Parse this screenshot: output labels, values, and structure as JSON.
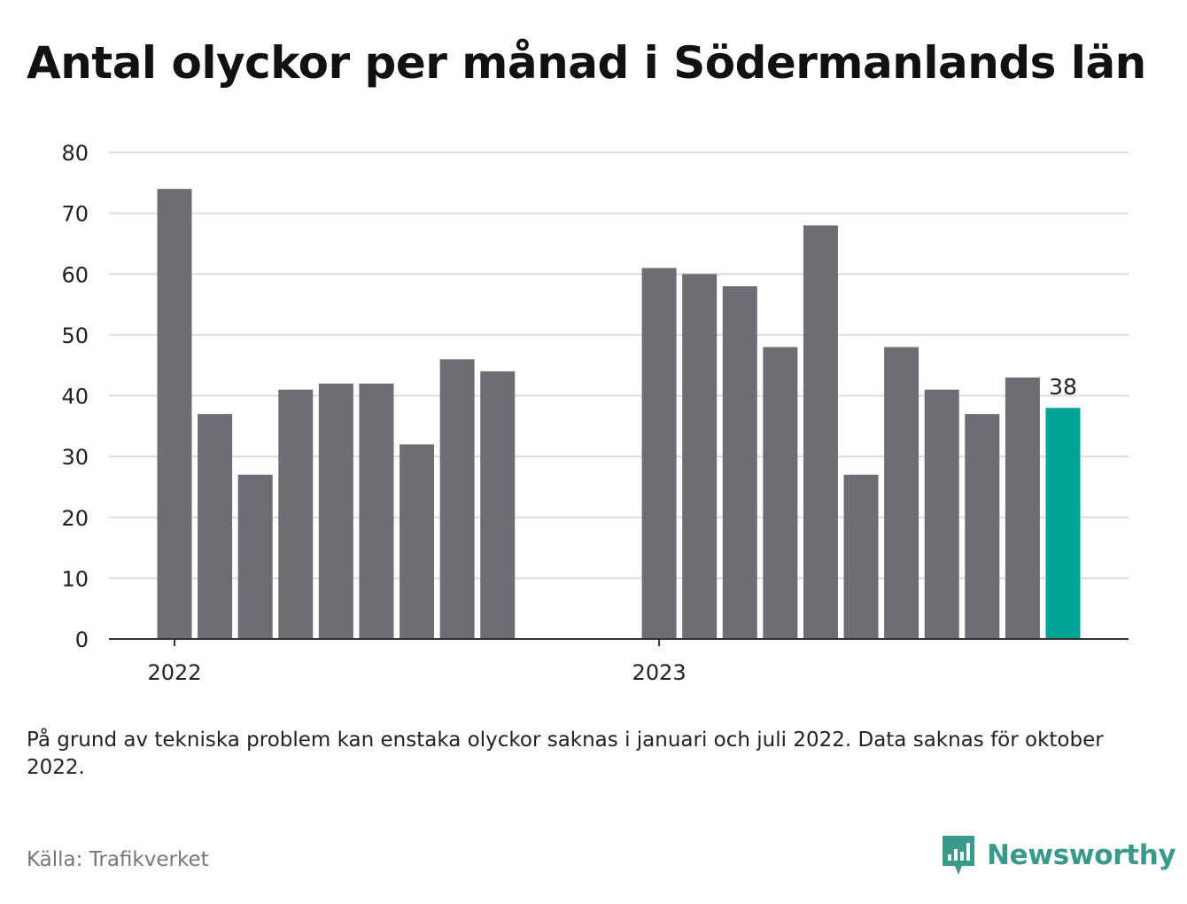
{
  "title": "Antal olyckor per månad i Södermanlands län",
  "chart_data": {
    "type": "bar",
    "title": "Antal olyckor per månad i Södermanlands län",
    "xlabel": "",
    "ylabel": "",
    "ylim": [
      0,
      80
    ],
    "y_ticks": [
      0,
      10,
      20,
      30,
      40,
      50,
      60,
      70,
      80
    ],
    "grid": true,
    "x_tick_labels": [
      {
        "label": "2022",
        "at": "2022-01"
      },
      {
        "label": "2023",
        "at": "2023-01"
      }
    ],
    "categories": [
      "2022-01",
      "2022-02",
      "2022-03",
      "2022-04",
      "2022-05",
      "2022-06",
      "2022-07",
      "2022-08",
      "2022-09",
      "2022-10",
      "2022-11",
      "2022-12",
      "2023-01",
      "2023-02",
      "2023-03",
      "2023-04",
      "2023-05",
      "2023-06",
      "2023-07",
      "2023-08",
      "2023-09",
      "2023-10",
      "2023-11"
    ],
    "values": [
      74,
      37,
      27,
      41,
      42,
      42,
      32,
      46,
      44,
      null,
      null,
      null,
      61,
      60,
      58,
      48,
      68,
      27,
      48,
      41,
      37,
      43,
      38
    ],
    "highlight": {
      "category": "2023-11",
      "value": 38,
      "label": "38"
    },
    "colors": {
      "bar": "#6e6d73",
      "highlight": "#00a398",
      "grid": "#dddddd",
      "axis": "#333333"
    }
  },
  "footnote": "På grund av tekniska problem kan enstaka olyckor saknas i januari och juli 2022. Data saknas för oktober 2022.",
  "source": "Källa: Trafikverket",
  "brand": {
    "name": "Newsworthy",
    "color": "#3a9a8a",
    "icon": "newsworthy-logo-icon"
  }
}
